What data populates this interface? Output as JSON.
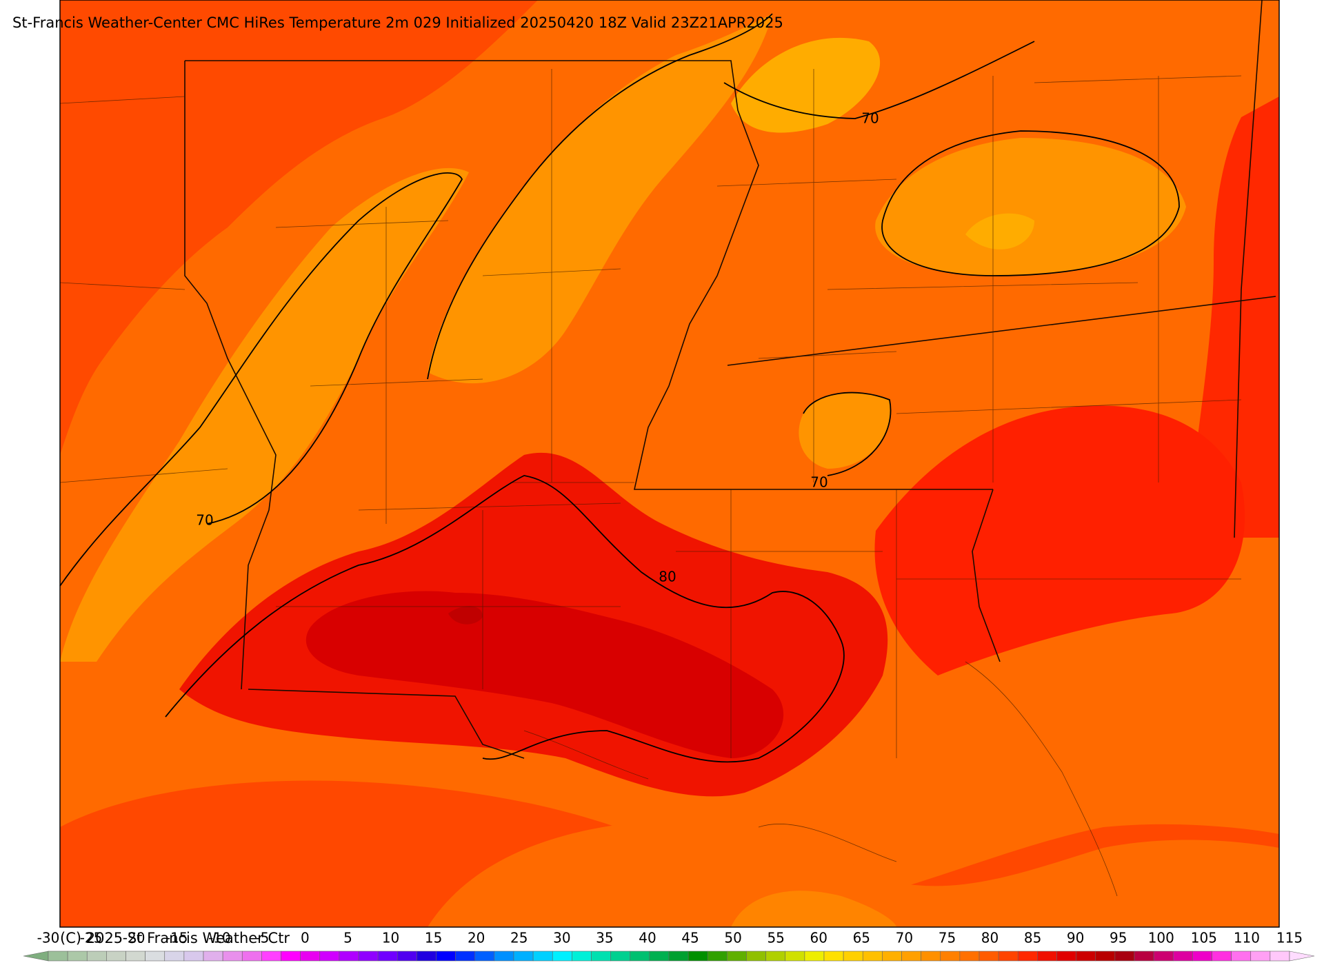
{
  "header": {
    "title": "St-Francis Weather-Center CMC HiRes Temperature 2m  029 Initialized 20250420 18Z  Valid 23Z21APR2025"
  },
  "contour_labels": [
    "70",
    "70",
    "70",
    "80"
  ],
  "colorbar": {
    "ticks": [
      -30,
      -25,
      -20,
      -15,
      -10,
      -5,
      0,
      5,
      10,
      15,
      20,
      25,
      30,
      35,
      40,
      45,
      50,
      55,
      60,
      65,
      70,
      75,
      80,
      85,
      90,
      95,
      100,
      105,
      110,
      115
    ],
    "colors": [
      "#9cc09a",
      "#acc8a8",
      "#bccdb8",
      "#c8d2c4",
      "#d2d8d0",
      "#dadde0",
      "#d8d4e8",
      "#d8c8ec",
      "#e0b0ec",
      "#e890ec",
      "#ee70ee",
      "#ff40ff",
      "#ff00ff",
      "#e800f0",
      "#d000ff",
      "#b000ff",
      "#9000ff",
      "#7000ff",
      "#5000f0",
      "#2000e0",
      "#0000ff",
      "#0030ff",
      "#0060ff",
      "#0090ff",
      "#00b0ff",
      "#00d0ff",
      "#00f0ff",
      "#00f0d8",
      "#00e0b0",
      "#00d090",
      "#00c070",
      "#00b050",
      "#00a030",
      "#009000",
      "#30a000",
      "#60b000",
      "#90c000",
      "#b0d000",
      "#d0e000",
      "#eeee00",
      "#ffe000",
      "#ffd000",
      "#ffc000",
      "#ffb000",
      "#ffa000",
      "#ff9000",
      "#ff8000",
      "#ff7000",
      "#ff5c00",
      "#ff4400",
      "#ff2800",
      "#f01000",
      "#e00000",
      "#cc0000",
      "#b80000",
      "#a80010",
      "#b80040",
      "#cc0070",
      "#dd00a0",
      "#ee00c8",
      "#ff30e0",
      "#ff70ee",
      "#ffa0f4",
      "#ffc8fa"
    ],
    "under_color": "#7fae7f",
    "over_color": "#ffdcff"
  },
  "footer": {
    "copyright": "(C) 2025 St Francis Weather Ctr"
  }
}
